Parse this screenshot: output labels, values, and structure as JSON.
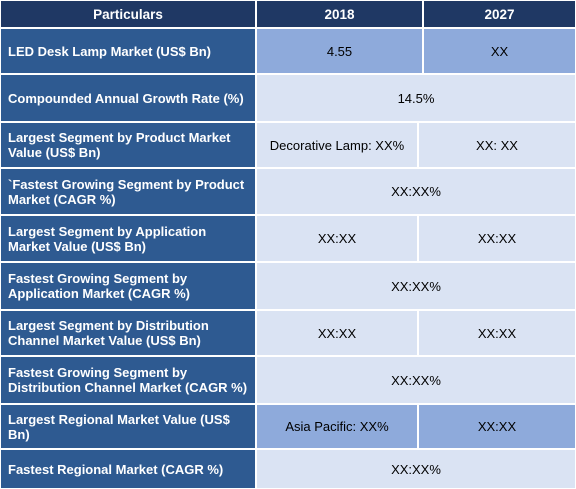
{
  "header": {
    "particulars": "Particulars",
    "year1": "2018",
    "year2": "2027"
  },
  "rows": [
    {
      "label": "LED Desk Lamp Market (US$ Bn)",
      "v2018": "4.55",
      "v2027": "XX"
    },
    {
      "label": "Compounded Annual Growth Rate (%)",
      "value": "14.5%"
    },
    {
      "label": "Largest Segment by Product Market Value (US$ Bn)",
      "v2018": "Decorative Lamp: XX%",
      "v2027": "XX: XX"
    },
    {
      "label": "`Fastest Growing Segment by Product Market (CAGR %)",
      "value": "XX:XX%"
    },
    {
      "label": "Largest Segment by Application Market Value (US$ Bn)",
      "v2018": "XX:XX",
      "v2027": "XX:XX"
    },
    {
      "label": "Fastest Growing Segment by Application Market (CAGR %)",
      "value": "XX:XX%"
    },
    {
      "label": "Largest Segment by Distribution Channel Market Value (US$ Bn)",
      "v2018": "XX:XX",
      "v2027": "XX:XX"
    },
    {
      "label": "Fastest Growing Segment by Distribution Channel Market (CAGR %)",
      "value": "XX:XX%"
    },
    {
      "label": "Largest Regional Market Value (US$ Bn)",
      "v2018": "Asia Pacific: XX%",
      "v2027": "XX:XX"
    },
    {
      "label": "Fastest Regional Market (CAGR %)",
      "value": "XX:XX%"
    }
  ]
}
